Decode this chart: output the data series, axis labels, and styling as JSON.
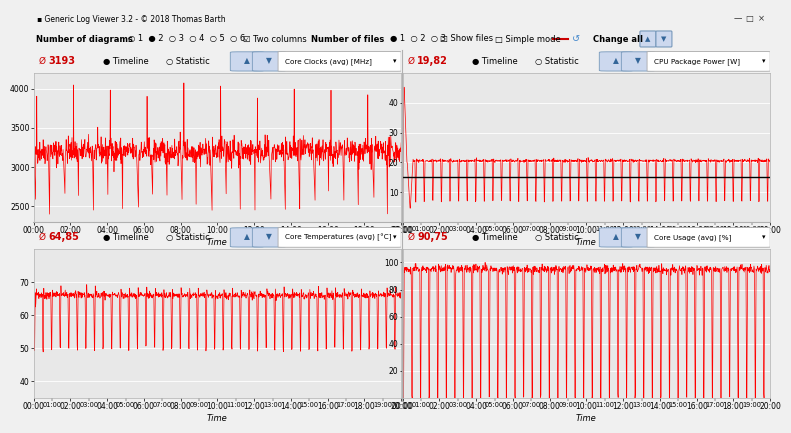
{
  "title_bar": "Generic Log Viewer 3.2 - © 2018 Thomas Barth",
  "bg_color": "#f0f0f0",
  "titlebar_color": "#e0e0e0",
  "panel_header_color": "#f0f0f0",
  "chart_bg": "#e8e8e8",
  "border_color": "#b0b0b0",
  "plots": [
    {
      "avg_label": "3193",
      "title": "Core Clocks (avg) [MHz]",
      "ylim": [
        2300,
        4200
      ],
      "yticks": [
        2500,
        3000,
        3500,
        4000
      ],
      "has_minor_xticks": false,
      "has_hline": false,
      "hline_val": 0,
      "row": 0,
      "col": 0
    },
    {
      "avg_label": "19,82",
      "title": "CPU Package Power [W]",
      "ylim": [
        0,
        50
      ],
      "yticks": [
        10,
        20,
        30,
        40
      ],
      "has_minor_xticks": true,
      "has_hline": true,
      "hline_val": 15,
      "row": 0,
      "col": 1
    },
    {
      "avg_label": "64,85",
      "title": "Core Temperatures (avg) [°C]",
      "ylim": [
        35,
        80
      ],
      "yticks": [
        40,
        50,
        60,
        70
      ],
      "has_minor_xticks": true,
      "has_hline": false,
      "hline_val": 0,
      "row": 1,
      "col": 0
    },
    {
      "avg_label": "90,75",
      "title": "Core Usage (avg) [%]",
      "ylim": [
        0,
        110
      ],
      "yticks": [
        20,
        40,
        60,
        80,
        100
      ],
      "has_minor_xticks": true,
      "has_hline": false,
      "hline_val": 0,
      "row": 1,
      "col": 1
    }
  ],
  "line_color": "#ff0000",
  "hline_color": "#000000",
  "grid_color": "#ffffff",
  "time_label": "Time"
}
